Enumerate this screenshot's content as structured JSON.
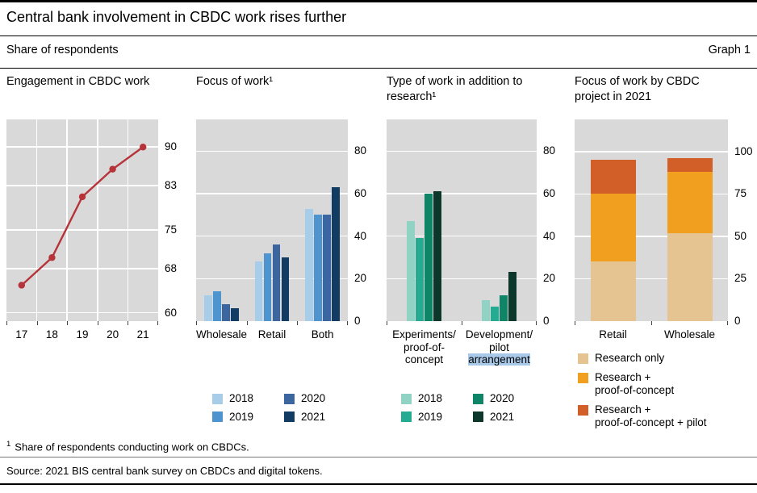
{
  "header": {
    "title": "Central bank involvement in CBDC work rises further",
    "subtitle": "Share of respondents",
    "graph_label": "Graph 1"
  },
  "footnote_marker": "1",
  "footnote": "Share of respondents conducting work on CBDCs.",
  "source": "Source: 2021 BIS central bank survey on CBDCs and digital tokens.",
  "colors": {
    "plot_background": "#d9d9d9",
    "gridline": "#ffffff",
    "selection_highlight": "#a9c9e8",
    "line_red": "#b63339"
  },
  "chart_data": [
    {
      "type": "line",
      "title": "Engagement in CBDC work",
      "x": [
        "17",
        "18",
        "19",
        "20",
        "21"
      ],
      "values": [
        65,
        70,
        81,
        86,
        90
      ],
      "yticks": [
        60,
        68,
        75,
        83,
        90
      ],
      "ylim": [
        58.5,
        95
      ],
      "color": "#b63339",
      "vgrid": true,
      "grid": true,
      "legend_position": "none"
    },
    {
      "type": "bar",
      "title": "Focus of work¹",
      "categories": [
        "Wholesale",
        "Retail",
        "Both"
      ],
      "series": [
        {
          "name": "2018",
          "color": "#a8cde8",
          "values": [
            12,
            28,
            53
          ]
        },
        {
          "name": "2019",
          "color": "#4e95cf",
          "values": [
            14,
            32,
            50
          ]
        },
        {
          "name": "2020",
          "color": "#3b66a0",
          "values": [
            8,
            36,
            50
          ]
        },
        {
          "name": "2021",
          "color": "#123c63",
          "values": [
            6,
            30,
            63
          ]
        }
      ],
      "yticks": [
        0,
        20,
        40,
        60,
        80
      ],
      "ylim": [
        0,
        95
      ],
      "grid": true,
      "legend_position": "below"
    },
    {
      "type": "bar",
      "title": "Type of work in addition to research¹",
      "categories": [
        {
          "lines": [
            "Experiments/",
            "proof-of-",
            "concept"
          ]
        },
        {
          "lines": [
            "Development/",
            "pilot",
            {
              "text": "arrangement",
              "highlight": true
            }
          ]
        }
      ],
      "series": [
        {
          "name": "2018",
          "color": "#90d2c3",
          "values": [
            47,
            10
          ]
        },
        {
          "name": "2019",
          "color": "#25ab92",
          "values": [
            39,
            7
          ]
        },
        {
          "name": "2020",
          "color": "#0e8566",
          "values": [
            60,
            12
          ]
        },
        {
          "name": "2021",
          "color": "#0c382b",
          "values": [
            61,
            23
          ]
        }
      ],
      "yticks": [
        0,
        20,
        40,
        60,
        80
      ],
      "ylim": [
        0,
        95
      ],
      "grid": true,
      "legend_position": "below"
    },
    {
      "type": "stacked-bar",
      "title": "Focus of work by CBDC project in 2021",
      "categories": [
        "Retail",
        "Wholesale"
      ],
      "series": [
        {
          "name": "Research only",
          "color": "#e5c492",
          "values": [
            35,
            52
          ]
        },
        {
          "name": "Research + proof-of-concept",
          "color": "#f09f1f",
          "values": [
            40,
            36
          ]
        },
        {
          "name": "Research + proof-of-concept + pilot",
          "color": "#d25f27",
          "values": [
            20,
            8
          ]
        }
      ],
      "legend_lines": [
        [
          "Research only"
        ],
        [
          "Research +",
          "proof-of-concept"
        ],
        [
          "Research +",
          "proof-of-concept + pilot"
        ]
      ],
      "yticks": [
        0,
        25,
        50,
        75,
        100
      ],
      "ylim": [
        0,
        119
      ],
      "grid": true,
      "legend_position": "below"
    }
  ]
}
